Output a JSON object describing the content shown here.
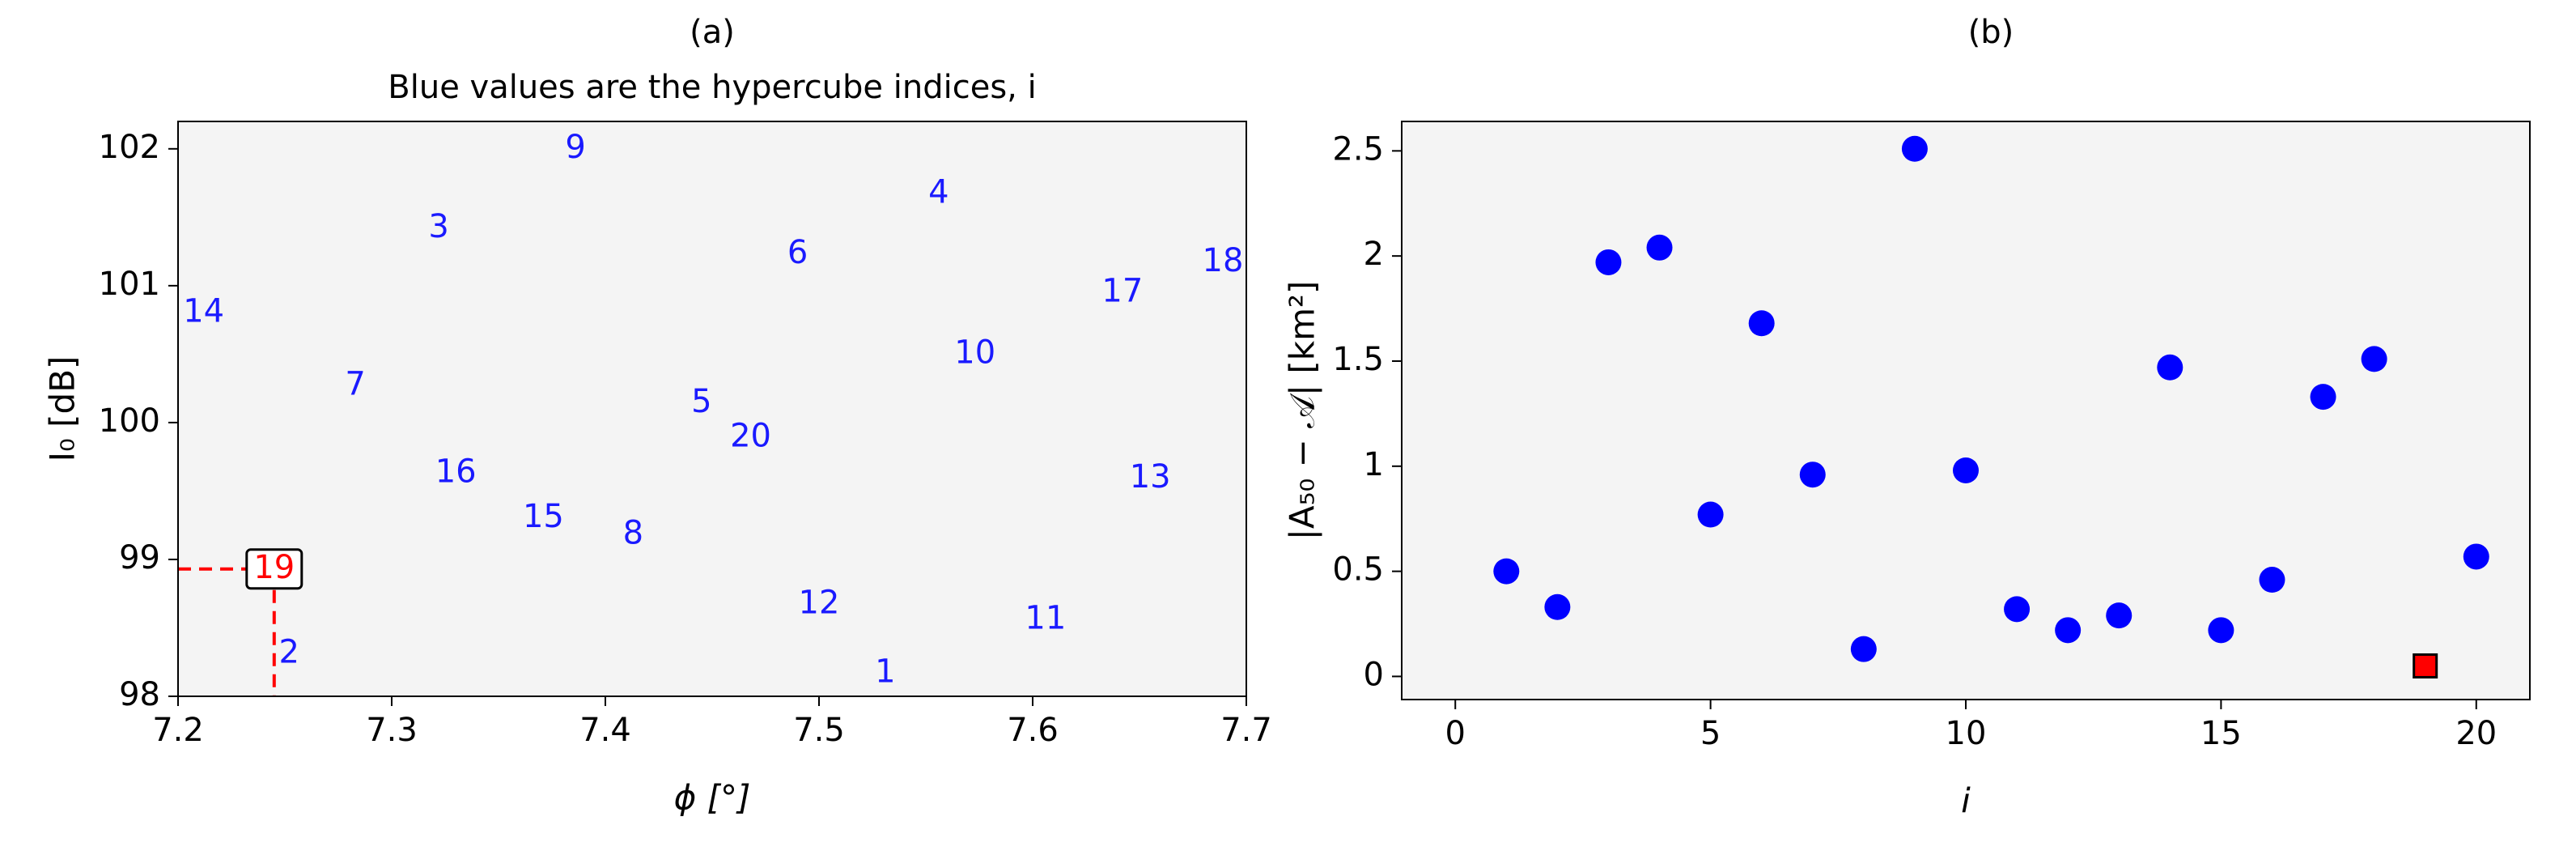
{
  "chart_data": [
    {
      "type": "text-scatter",
      "title": "(a)",
      "subtitle": "Blue values are the hypercube indices, i",
      "xlabel": "ϕ [°]",
      "ylabel": "I₀ [dB]",
      "xlim": [
        7.2,
        7.7
      ],
      "ylim": [
        98,
        102.2
      ],
      "xticks": [
        7.2,
        7.3,
        7.4,
        7.5,
        7.6,
        7.7
      ],
      "yticks": [
        98,
        99,
        100,
        101,
        102
      ],
      "background": "#f4f4f4",
      "series": [
        {
          "color": "#1a1aff",
          "labels": [
            1,
            2,
            3,
            4,
            5,
            6,
            7,
            8,
            9,
            10,
            11,
            12,
            13,
            14,
            15,
            16,
            17,
            18,
            20
          ],
          "x": [
            7.531,
            7.252,
            7.322,
            7.556,
            7.445,
            7.49,
            7.283,
            7.413,
            7.386,
            7.573,
            7.606,
            7.5,
            7.655,
            7.212,
            7.371,
            7.33,
            7.642,
            7.689,
            7.468
          ],
          "y": [
            98.17,
            98.31,
            101.42,
            101.67,
            100.14,
            101.23,
            100.27,
            99.18,
            102.0,
            100.5,
            98.56,
            98.67,
            99.59,
            100.8,
            99.3,
            99.63,
            100.95,
            101.17,
            99.89
          ]
        },
        {
          "color": "#ff0000",
          "labels": [
            19
          ],
          "x": [
            7.245
          ],
          "y": [
            98.93
          ],
          "boxed": true,
          "guides": true
        }
      ]
    },
    {
      "type": "scatter",
      "title": "(b)",
      "xlabel": "i",
      "ylabel": "|A₅₀ − 𝒜| [km²]",
      "xlim": [
        -1.05,
        21.05
      ],
      "ylim": [
        -0.11,
        2.64
      ],
      "xticks": [
        0,
        5,
        10,
        15,
        20
      ],
      "yticks": [
        0,
        0.5,
        1,
        1.5,
        2,
        2.5
      ],
      "background": "#f4f4f4",
      "series": [
        {
          "color": "#0000ff",
          "marker": "circle",
          "x": [
            1,
            2,
            3,
            4,
            5,
            6,
            7,
            8,
            9,
            10,
            11,
            12,
            13,
            14,
            15,
            16,
            17,
            18,
            20
          ],
          "values": [
            0.5,
            0.33,
            1.97,
            2.04,
            0.77,
            1.68,
            0.96,
            0.13,
            2.51,
            0.98,
            0.32,
            0.22,
            0.29,
            1.47,
            0.22,
            0.46,
            1.33,
            1.51,
            0.57
          ]
        },
        {
          "color": "#ff0000",
          "marker": "square",
          "x": [
            19
          ],
          "values": [
            0.05
          ]
        }
      ]
    }
  ]
}
